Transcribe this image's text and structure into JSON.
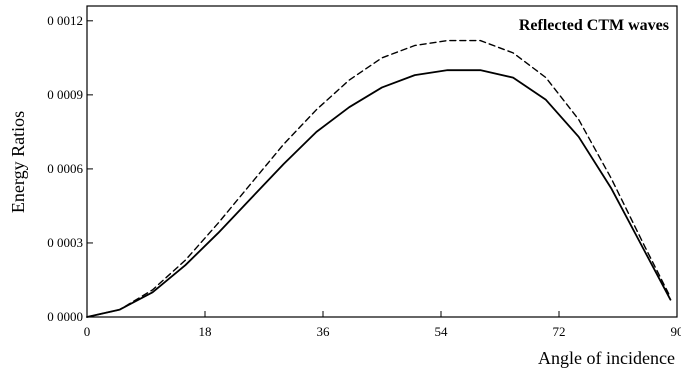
{
  "chart_data": {
    "type": "line",
    "title": "Reflected CTM waves",
    "xlabel": "Angle of incidence",
    "ylabel": "Energy Ratios",
    "xlim": [
      0,
      90
    ],
    "ylim": [
      0,
      0.00126
    ],
    "x_ticks": [
      0,
      18,
      36,
      54,
      72,
      90
    ],
    "x_tick_labels": [
      "0",
      "18",
      "36",
      "54",
      "72",
      "90"
    ],
    "y_ticks": [
      0,
      0.0003,
      0.0006,
      0.0009,
      0.0012
    ],
    "y_tick_labels": [
      "0 0000",
      "0 0003",
      "0 0006",
      "0 0009",
      "0 0012"
    ],
    "grid": false,
    "legend": "none",
    "series": [
      {
        "style": "dashed",
        "color": "#000000",
        "x": [
          0,
          5,
          10,
          15,
          20,
          25,
          30,
          35,
          40,
          45,
          50,
          55,
          60,
          65,
          70,
          75,
          80,
          85,
          89
        ],
        "y": [
          0,
          3e-05,
          0.00011,
          0.00023,
          0.00038,
          0.00054,
          0.0007,
          0.00084,
          0.00096,
          0.00105,
          0.0011,
          0.00112,
          0.00112,
          0.00107,
          0.00097,
          0.0008,
          0.00056,
          0.00029,
          8e-05
        ]
      },
      {
        "style": "solid",
        "color": "#000000",
        "x": [
          0,
          5,
          10,
          15,
          20,
          25,
          30,
          35,
          40,
          45,
          50,
          55,
          60,
          65,
          70,
          75,
          80,
          85,
          89
        ],
        "y": [
          0,
          3e-05,
          0.0001,
          0.00021,
          0.00034,
          0.00048,
          0.00062,
          0.00075,
          0.00085,
          0.00093,
          0.00098,
          0.001,
          0.001,
          0.00097,
          0.00088,
          0.00073,
          0.00052,
          0.00027,
          7e-05
        ]
      }
    ]
  }
}
